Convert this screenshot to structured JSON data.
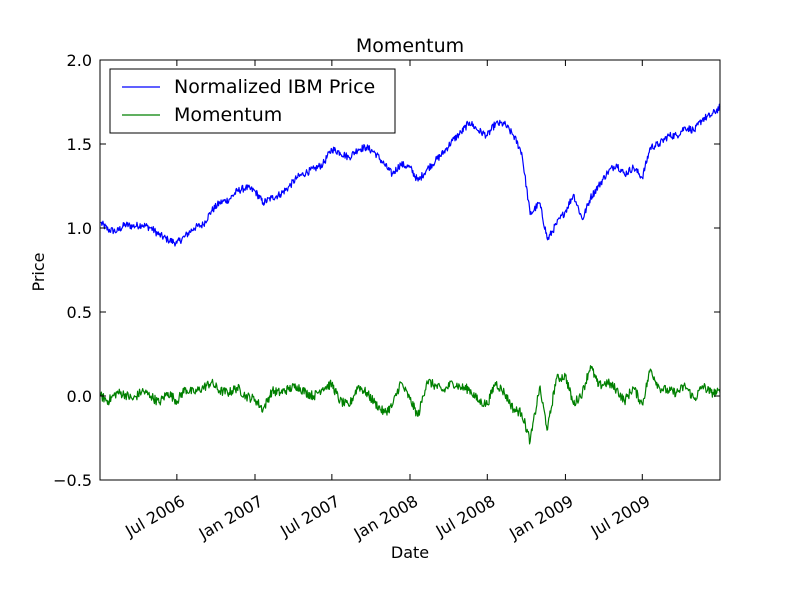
{
  "chart_data": {
    "type": "line",
    "title": "Momentum",
    "xlabel": "Date",
    "ylabel": "Price",
    "xlim": [
      "2006-01-01",
      "2009-12-31"
    ],
    "ylim": [
      -0.5,
      2.0
    ],
    "yticks": [
      -0.5,
      0.0,
      0.5,
      1.0,
      1.5,
      2.0
    ],
    "ytick_labels": [
      "−0.5",
      "0.0",
      "0.5",
      "1.0",
      "1.5",
      "2.0"
    ],
    "xticks": [
      "2006-07-01",
      "2007-01-01",
      "2007-07-01",
      "2008-01-01",
      "2008-07-01",
      "2009-01-01",
      "2009-07-01"
    ],
    "xtick_labels": [
      "Jul 2006",
      "Jan 2007",
      "Jul 2007",
      "Jan 2008",
      "Jul 2008",
      "Jan 2009",
      "Jul 2009"
    ],
    "grid": false,
    "legend_position": "top-left",
    "series": [
      {
        "name": "Normalized IBM Price",
        "color": "#0000ff",
        "x": [
          "2006-01-03",
          "2006-01-20",
          "2006-02-10",
          "2006-03-01",
          "2006-03-20",
          "2006-04-10",
          "2006-05-01",
          "2006-05-20",
          "2006-06-10",
          "2006-07-01",
          "2006-07-20",
          "2006-08-10",
          "2006-09-01",
          "2006-09-20",
          "2006-10-10",
          "2006-11-01",
          "2006-11-20",
          "2006-12-10",
          "2007-01-01",
          "2007-01-20",
          "2007-02-10",
          "2007-03-01",
          "2007-03-20",
          "2007-04-10",
          "2007-05-01",
          "2007-05-20",
          "2007-06-10",
          "2007-07-01",
          "2007-07-20",
          "2007-08-10",
          "2007-09-01",
          "2007-09-20",
          "2007-10-10",
          "2007-11-01",
          "2007-11-20",
          "2007-12-10",
          "2008-01-01",
          "2008-01-20",
          "2008-02-10",
          "2008-03-01",
          "2008-03-20",
          "2008-04-10",
          "2008-05-01",
          "2008-05-20",
          "2008-06-10",
          "2008-07-01",
          "2008-07-20",
          "2008-08-10",
          "2008-09-01",
          "2008-09-20",
          "2008-10-10",
          "2008-11-01",
          "2008-11-20",
          "2008-12-10",
          "2009-01-01",
          "2009-01-20",
          "2009-02-10",
          "2009-03-01",
          "2009-03-20",
          "2009-04-10",
          "2009-05-01",
          "2009-05-20",
          "2009-06-10",
          "2009-07-01",
          "2009-07-20",
          "2009-08-10",
          "2009-09-01",
          "2009-09-20",
          "2009-10-10",
          "2009-11-01",
          "2009-11-20",
          "2009-12-10",
          "2009-12-31"
        ],
        "values": [
          1.03,
          0.99,
          0.98,
          1.02,
          1.01,
          1.02,
          1.0,
          0.96,
          0.93,
          0.91,
          0.95,
          1.0,
          1.02,
          1.1,
          1.15,
          1.17,
          1.22,
          1.24,
          1.22,
          1.15,
          1.18,
          1.2,
          1.24,
          1.3,
          1.33,
          1.35,
          1.38,
          1.47,
          1.45,
          1.42,
          1.47,
          1.48,
          1.45,
          1.38,
          1.32,
          1.38,
          1.36,
          1.28,
          1.35,
          1.4,
          1.45,
          1.52,
          1.57,
          1.63,
          1.58,
          1.55,
          1.62,
          1.62,
          1.55,
          1.45,
          1.08,
          1.15,
          0.93,
          1.02,
          1.1,
          1.2,
          1.05,
          1.18,
          1.25,
          1.33,
          1.38,
          1.32,
          1.36,
          1.3,
          1.48,
          1.5,
          1.55,
          1.55,
          1.6,
          1.58,
          1.65,
          1.67,
          1.72
        ]
      },
      {
        "name": "Momentum",
        "color": "#008000",
        "x": [
          "2006-01-03",
          "2006-01-20",
          "2006-02-10",
          "2006-03-01",
          "2006-03-20",
          "2006-04-10",
          "2006-05-01",
          "2006-05-20",
          "2006-06-10",
          "2006-07-01",
          "2006-07-20",
          "2006-08-10",
          "2006-09-01",
          "2006-09-20",
          "2006-10-10",
          "2006-11-01",
          "2006-11-20",
          "2006-12-10",
          "2007-01-01",
          "2007-01-20",
          "2007-02-10",
          "2007-03-01",
          "2007-03-20",
          "2007-04-10",
          "2007-05-01",
          "2007-05-20",
          "2007-06-10",
          "2007-07-01",
          "2007-07-20",
          "2007-08-10",
          "2007-09-01",
          "2007-09-20",
          "2007-10-10",
          "2007-11-01",
          "2007-11-20",
          "2007-12-10",
          "2008-01-01",
          "2008-01-20",
          "2008-02-10",
          "2008-03-01",
          "2008-03-20",
          "2008-04-10",
          "2008-05-01",
          "2008-05-20",
          "2008-06-10",
          "2008-07-01",
          "2008-07-20",
          "2008-08-10",
          "2008-09-01",
          "2008-09-20",
          "2008-10-10",
          "2008-11-01",
          "2008-11-20",
          "2008-12-10",
          "2009-01-01",
          "2009-01-20",
          "2009-02-10",
          "2009-03-01",
          "2009-03-20",
          "2009-04-10",
          "2009-05-01",
          "2009-05-20",
          "2009-06-10",
          "2009-07-01",
          "2009-07-20",
          "2009-08-10",
          "2009-09-01",
          "2009-09-20",
          "2009-10-10",
          "2009-11-01",
          "2009-11-20",
          "2009-12-10",
          "2009-12-31"
        ],
        "values": [
          0.0,
          -0.03,
          0.02,
          0.01,
          -0.02,
          0.03,
          0.0,
          -0.04,
          0.02,
          -0.03,
          0.04,
          0.02,
          0.05,
          0.08,
          0.03,
          0.02,
          0.05,
          0.0,
          -0.02,
          -0.08,
          0.03,
          0.02,
          0.04,
          0.06,
          0.02,
          0.0,
          0.05,
          0.07,
          -0.03,
          -0.06,
          0.06,
          0.02,
          -0.04,
          -0.1,
          -0.06,
          0.08,
          -0.02,
          -0.12,
          0.09,
          0.06,
          0.03,
          0.08,
          0.05,
          0.04,
          -0.03,
          -0.05,
          0.08,
          0.02,
          -0.08,
          -0.1,
          -0.27,
          0.05,
          -0.2,
          0.1,
          0.12,
          -0.05,
          0.02,
          0.18,
          0.06,
          0.08,
          0.04,
          -0.03,
          0.05,
          -0.05,
          0.16,
          0.05,
          0.03,
          0.02,
          0.06,
          -0.02,
          0.06,
          0.02,
          0.02
        ]
      }
    ]
  }
}
